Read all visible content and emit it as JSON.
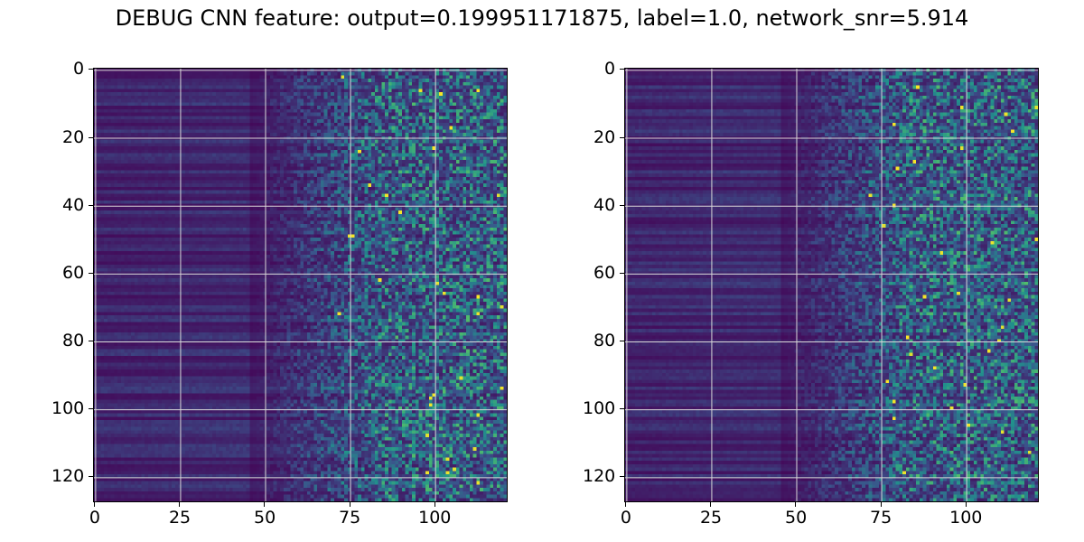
{
  "chart_data": {
    "type": "heatmap",
    "title": "DEBUG CNN feature: output=0.199951171875, label=1.0, network_snr=5.914",
    "colormap": "viridis",
    "colormap_stops": [
      "#440154",
      "#3b528b",
      "#21918c",
      "#5ec962",
      "#fde725"
    ],
    "grid": true,
    "grid_color": "#d9d9d9",
    "panels": [
      {
        "name": "left",
        "rows": 128,
        "cols": 122,
        "xlim": [
          -0.5,
          121.5
        ],
        "ylim": [
          127.5,
          -0.5
        ],
        "xticks": [
          0,
          25,
          50,
          75,
          100
        ],
        "xtick_labels": [
          "0",
          "25",
          "50",
          "75",
          "100"
        ],
        "yticks": [
          0,
          20,
          40,
          60,
          80,
          100,
          120
        ],
        "ytick_labels": [
          "0",
          "20",
          "40",
          "60",
          "80",
          "100",
          "120"
        ],
        "structure": "low, row-striped values for columns 0-45; noise rising with column index; sparse bright outliers beyond column 75",
        "seed": 7
      },
      {
        "name": "right",
        "rows": 128,
        "cols": 122,
        "xlim": [
          -0.5,
          121.5
        ],
        "ylim": [
          127.5,
          -0.5
        ],
        "xticks": [
          0,
          25,
          50,
          75,
          100
        ],
        "xtick_labels": [
          "0",
          "25",
          "50",
          "75",
          "100"
        ],
        "yticks": [
          0,
          20,
          40,
          60,
          80,
          100,
          120
        ],
        "ytick_labels": [
          "0",
          "20",
          "40",
          "60",
          "80",
          "100",
          "120"
        ],
        "structure": "low, row-striped values for columns 0-45; noise rising with column index; sparse bright outliers beyond column 70",
        "seed": 19
      }
    ]
  }
}
